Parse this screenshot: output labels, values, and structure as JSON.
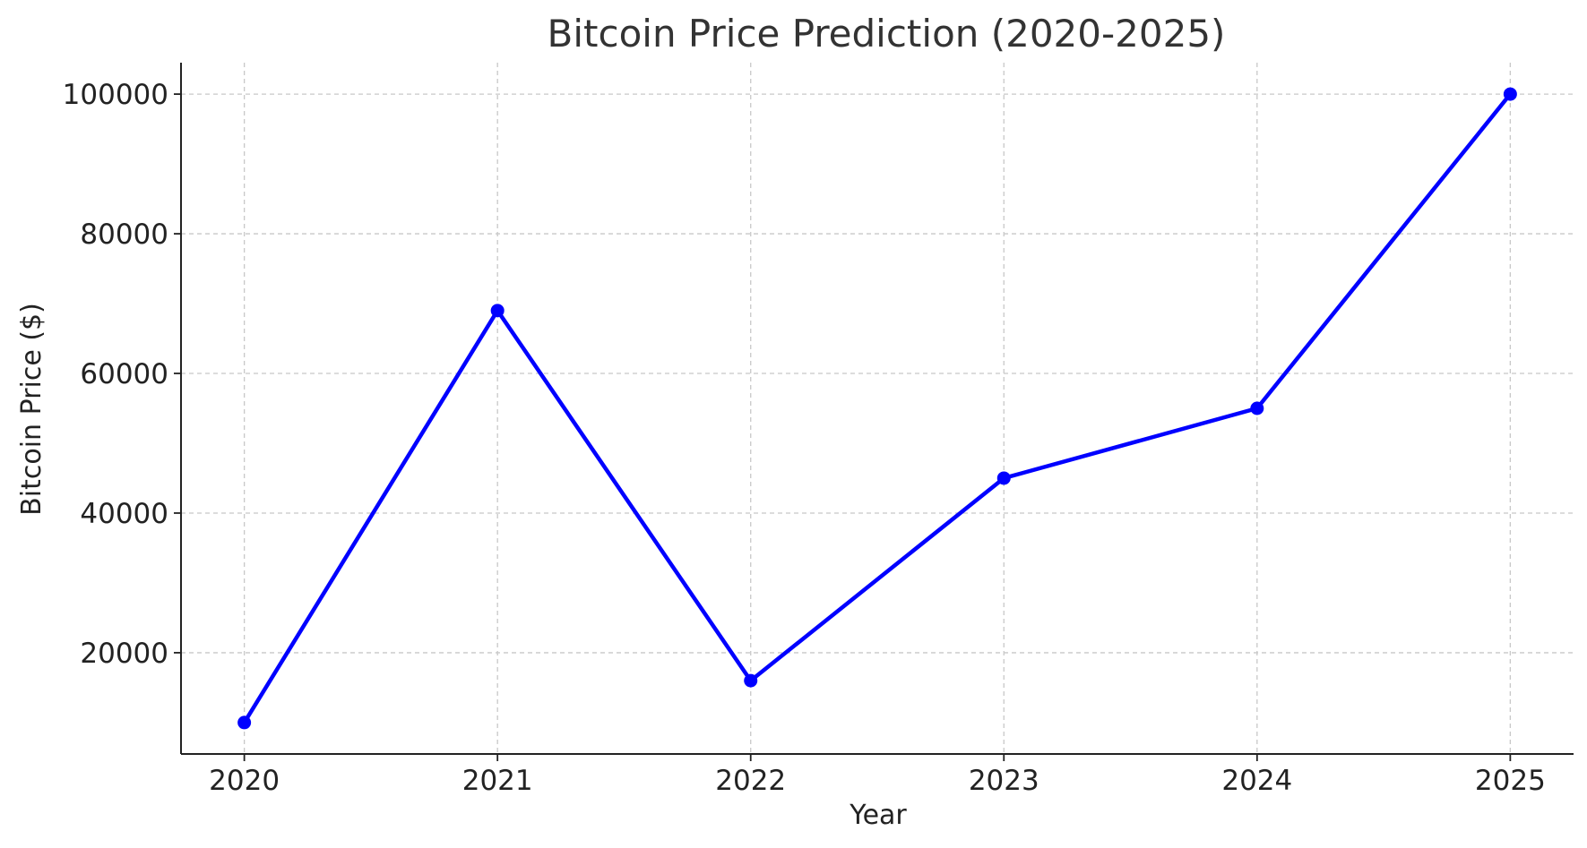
{
  "chart_data": {
    "type": "line",
    "title": "Bitcoin Price Prediction (2020-2025)",
    "xlabel": "Year",
    "ylabel": "Bitcoin Price ($)",
    "x": [
      2020,
      2021,
      2022,
      2023,
      2024,
      2025
    ],
    "x_tick_labels": [
      "2020",
      "2021",
      "2022",
      "2023",
      "2024",
      "2025"
    ],
    "y_ticks": [
      20000,
      40000,
      60000,
      80000,
      100000
    ],
    "y_tick_labels": [
      "20000",
      "40000",
      "60000",
      "80000",
      "100000"
    ],
    "xlim": [
      2019.75,
      2025.25
    ],
    "ylim": [
      5500,
      104500
    ],
    "grid": true,
    "series": [
      {
        "values": [
          10000,
          69000,
          16000,
          45000,
          55000,
          100000
        ],
        "color": "#0000ff",
        "marker": "circle"
      }
    ]
  }
}
